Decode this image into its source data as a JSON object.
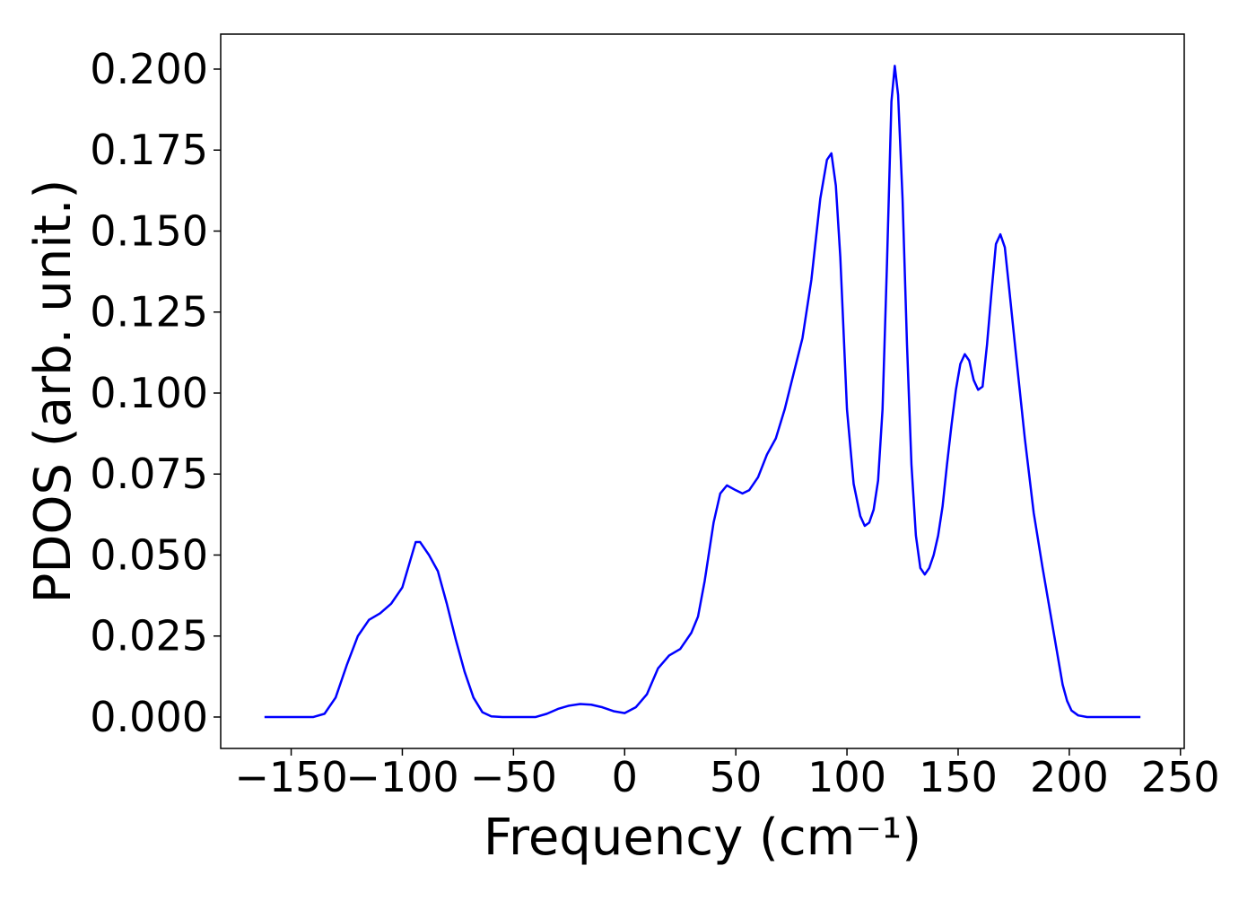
{
  "chart_data": {
    "type": "line",
    "xlabel": "Frequency (cm⁻¹)",
    "ylabel": "PDOS (arb. unit.)",
    "xlim": [
      -181.7,
      251.7
    ],
    "ylim": [
      -0.0097,
      0.2108
    ],
    "xticks": [
      {
        "value": -150,
        "label": "−150"
      },
      {
        "value": -100,
        "label": "−100"
      },
      {
        "value": -50,
        "label": "−50"
      },
      0,
      50,
      100,
      150,
      200,
      250
    ],
    "yticks": [
      {
        "value": 0,
        "label": "0.000"
      },
      {
        "value": 0.025,
        "label": "0.025"
      },
      {
        "value": 0.05,
        "label": "0.050"
      },
      {
        "value": 0.075,
        "label": "0.075"
      },
      {
        "value": 0.1,
        "label": "0.100"
      },
      {
        "value": 0.125,
        "label": "0.125"
      },
      {
        "value": 0.15,
        "label": "0.150"
      },
      {
        "value": 0.175,
        "label": "0.175"
      },
      {
        "value": 0.2,
        "label": "0.200"
      }
    ],
    "x": [
      -162,
      -140,
      -135,
      -130,
      -125,
      -120,
      -115,
      -110,
      -105,
      -100,
      -97,
      -94,
      -92,
      -88,
      -84,
      -80,
      -76,
      -72,
      -68,
      -64,
      -60,
      -55,
      -40,
      -35,
      -30,
      -25,
      -20,
      -15,
      -10,
      -5,
      0,
      5,
      10,
      15,
      20,
      25,
      30,
      33,
      36,
      40,
      43,
      46,
      50,
      53,
      56,
      60,
      64,
      68,
      72,
      76,
      80,
      84,
      88,
      91,
      93,
      95,
      97,
      100,
      103,
      106,
      108,
      110,
      112,
      114,
      116,
      118,
      120,
      121.5,
      123,
      125,
      127,
      129,
      131,
      133,
      135,
      137,
      139,
      141,
      143,
      145,
      147,
      149,
      151,
      153,
      155,
      157,
      159,
      161,
      163,
      165,
      167,
      169,
      171,
      173,
      176,
      180,
      184,
      188,
      192,
      195,
      197,
      199,
      201,
      204,
      208,
      232
    ],
    "series": [
      {
        "name": "PDOS",
        "color": "#0000ff",
        "values": [
          0,
          0,
          0.001,
          0.006,
          0.016,
          0.025,
          0.03,
          0.032,
          0.035,
          0.04,
          0.047,
          0.054,
          0.054,
          0.05,
          0.045,
          0.035,
          0.024,
          0.014,
          0.006,
          0.0015,
          0.0002,
          0,
          0,
          0.001,
          0.0025,
          0.0035,
          0.004,
          0.0038,
          0.003,
          0.0018,
          0.0012,
          0.003,
          0.007,
          0.015,
          0.019,
          0.021,
          0.026,
          0.031,
          0.042,
          0.06,
          0.069,
          0.0715,
          0.07,
          0.069,
          0.07,
          0.074,
          0.081,
          0.086,
          0.095,
          0.106,
          0.117,
          0.135,
          0.16,
          0.172,
          0.174,
          0.164,
          0.142,
          0.095,
          0.072,
          0.062,
          0.059,
          0.06,
          0.064,
          0.073,
          0.095,
          0.14,
          0.19,
          0.201,
          0.192,
          0.16,
          0.115,
          0.078,
          0.056,
          0.046,
          0.044,
          0.046,
          0.05,
          0.056,
          0.065,
          0.078,
          0.09,
          0.101,
          0.109,
          0.112,
          0.11,
          0.104,
          0.101,
          0.102,
          0.115,
          0.131,
          0.146,
          0.149,
          0.145,
          0.132,
          0.112,
          0.086,
          0.063,
          0.046,
          0.03,
          0.018,
          0.01,
          0.005,
          0.002,
          0.0005,
          0,
          0
        ]
      }
    ]
  }
}
